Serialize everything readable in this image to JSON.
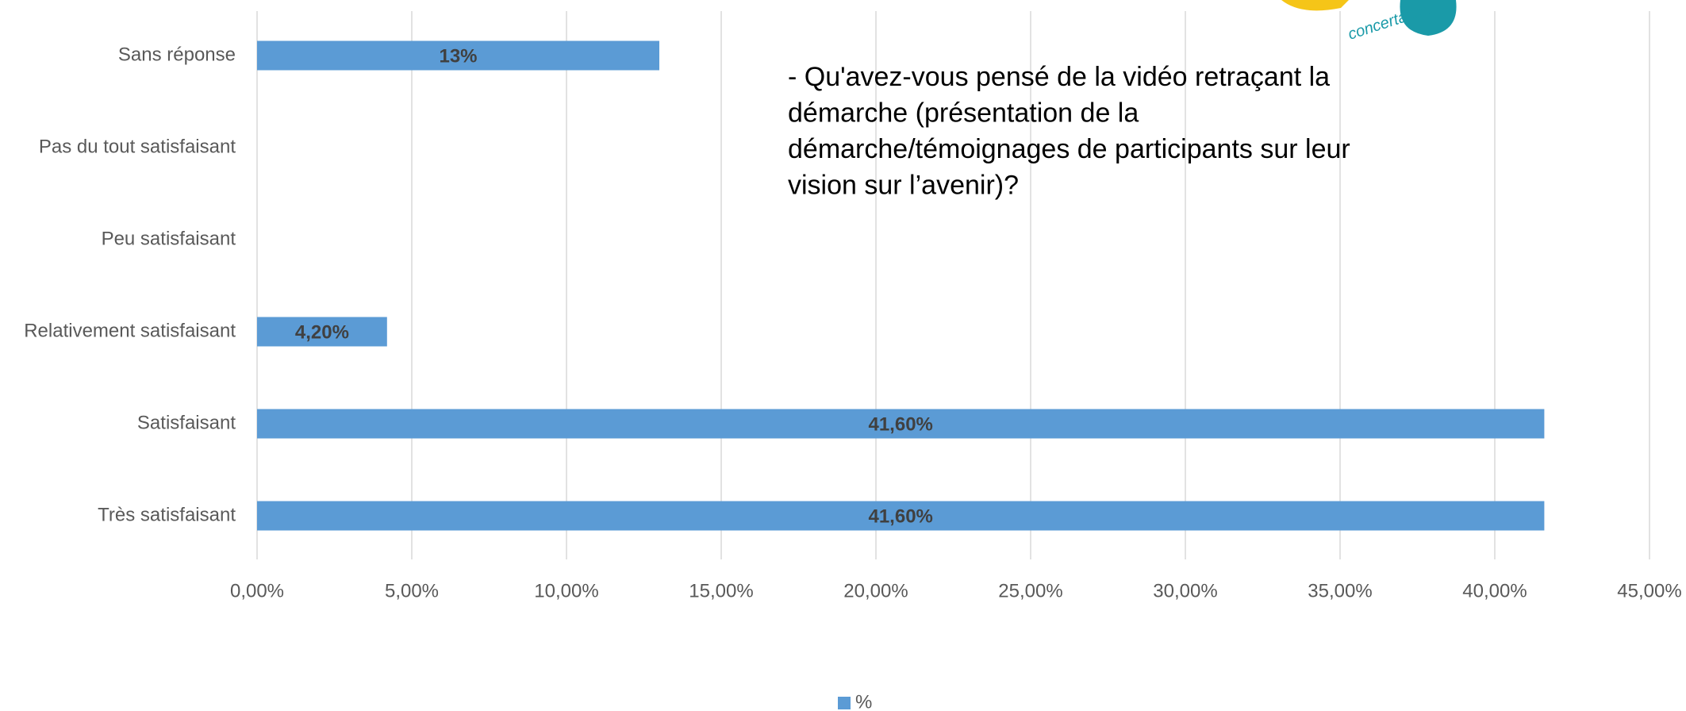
{
  "chart_data": {
    "type": "bar",
    "orientation": "horizontal",
    "annotation": [
      " - Qu'avez-vous pensé de la vidéo retraçant la",
      "démarche (présentation de la",
      "démarche/témoignages de participants sur leur",
      "vision sur l’avenir)?"
    ],
    "logo_text": "concertation",
    "categories": [
      "Sans réponse",
      "Pas du tout satisfaisant",
      "Peu satisfaisant",
      "Relativement satisfaisant",
      "Satisfaisant",
      "Très satisfaisant"
    ],
    "series": [
      {
        "name": "%",
        "color": "#5b9bd5",
        "values": [
          13,
          null,
          null,
          4.2,
          41.6,
          41.6
        ],
        "value_labels": [
          "13%",
          null,
          null,
          "4,20%",
          "41,60%",
          "41,60%"
        ]
      }
    ],
    "xlim": [
      0,
      45
    ],
    "xticks": [
      {
        "value": 0,
        "label": "0,00%"
      },
      {
        "value": 5,
        "label": "5,00%"
      },
      {
        "value": 10,
        "label": "10,00%"
      },
      {
        "value": 15,
        "label": "15,00%"
      },
      {
        "value": 20,
        "label": "20,00%"
      },
      {
        "value": 25,
        "label": "25,00%"
      },
      {
        "value": 30,
        "label": "30,00%"
      },
      {
        "value": 35,
        "label": "35,00%"
      },
      {
        "value": 40,
        "label": "40,00%"
      },
      {
        "value": 45,
        "label": "45,00%"
      }
    ],
    "grid": true,
    "legend": "bottom"
  }
}
